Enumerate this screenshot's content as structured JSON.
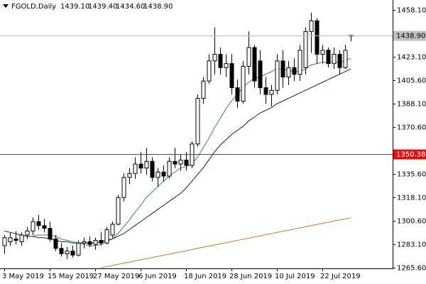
{
  "chart_data": {
    "type": "candlestick",
    "header": {
      "symbol": "FGOLD,Daily",
      "ohlc": [
        "1439.10",
        "1439.40",
        "1434.60",
        "1438.90"
      ]
    },
    "categories": [
      "3 May 2019",
      null,
      null,
      null,
      null,
      null,
      null,
      null,
      "15 May 2019",
      null,
      null,
      null,
      null,
      null,
      null,
      null,
      "27 May 2019",
      null,
      null,
      null,
      null,
      null,
      null,
      null,
      "6 Jun 2019",
      null,
      null,
      null,
      null,
      null,
      null,
      null,
      "18 Jun 2019",
      null,
      null,
      null,
      null,
      null,
      null,
      null,
      "28 Jun 2019",
      null,
      null,
      null,
      null,
      null,
      null,
      null,
      "10 Jul 2019",
      null,
      null,
      null,
      null,
      null,
      null,
      null,
      "22 Jul 2019",
      null,
      null,
      null,
      null,
      null
    ],
    "open": [
      1282,
      1285,
      1287,
      1285,
      1290,
      1293,
      1300,
      1297,
      1295,
      1287,
      1280,
      1276,
      1278,
      1275,
      1284,
      1285,
      1283,
      1286,
      1284,
      1290,
      1298,
      1318,
      1333,
      1336,
      1343,
      1340,
      1345,
      1333,
      1337,
      1334,
      1345,
      1343,
      1346,
      1342,
      1358,
      1392,
      1405,
      1420,
      1425,
      1415,
      1418,
      1400,
      1390,
      1416,
      1430,
      1420,
      1400,
      1395,
      1398,
      1420,
      1408,
      1415,
      1410,
      1415,
      1442,
      1450,
      1425,
      1428,
      1418,
      1425,
      1415,
      1439.1
    ],
    "high": [
      1290,
      1292,
      1293,
      1292,
      1296,
      1303,
      1305,
      1302,
      1300,
      1290,
      1284,
      1281,
      1282,
      1286,
      1288,
      1289,
      1288,
      1292,
      1296,
      1300,
      1320,
      1336,
      1340,
      1348,
      1352,
      1355,
      1348,
      1340,
      1342,
      1348,
      1355,
      1350,
      1352,
      1360,
      1395,
      1408,
      1425,
      1445,
      1430,
      1425,
      1425,
      1406,
      1420,
      1442,
      1432,
      1428,
      1408,
      1402,
      1425,
      1428,
      1420,
      1422,
      1432,
      1445,
      1456,
      1452,
      1432,
      1430,
      1430,
      1428,
      1432,
      1439.4
    ],
    "low": [
      1276,
      1282,
      1283,
      1282,
      1287,
      1290,
      1294,
      1292,
      1285,
      1278,
      1274,
      1272,
      1273,
      1274,
      1280,
      1281,
      1279,
      1282,
      1283,
      1288,
      1297,
      1315,
      1328,
      1332,
      1336,
      1335,
      1330,
      1326,
      1330,
      1332,
      1340,
      1338,
      1338,
      1340,
      1356,
      1388,
      1403,
      1410,
      1410,
      1408,
      1395,
      1385,
      1388,
      1410,
      1400,
      1395,
      1388,
      1386,
      1395,
      1400,
      1402,
      1405,
      1405,
      1410,
      1426,
      1418,
      1418,
      1415,
      1414,
      1410,
      1414,
      1434.6
    ],
    "close": [
      1288,
      1288,
      1286,
      1290,
      1293,
      1300,
      1297,
      1295,
      1287,
      1280,
      1276,
      1278,
      1275,
      1284,
      1285,
      1283,
      1286,
      1284,
      1294,
      1298,
      1318,
      1333,
      1336,
      1343,
      1340,
      1345,
      1333,
      1337,
      1334,
      1345,
      1343,
      1346,
      1342,
      1358,
      1392,
      1405,
      1420,
      1425,
      1415,
      1418,
      1400,
      1390,
      1416,
      1430,
      1405,
      1400,
      1395,
      1398,
      1420,
      1408,
      1415,
      1410,
      1428,
      1442,
      1450,
      1425,
      1428,
      1418,
      1425,
      1415,
      1428,
      1438.9
    ],
    "up_color": "#ffffff",
    "down_color": "#000000",
    "series": [
      {
        "color": "#2e8b57",
        "values": [
          null,
          null,
          null,
          null,
          null,
          1289,
          1290,
          1290,
          1290,
          1289,
          1287,
          1286,
          1285,
          1284,
          1283,
          1282,
          1282,
          1283,
          1285,
          1287,
          1291,
          1296,
          1301,
          1307,
          1312,
          1318,
          1322,
          1326,
          1330,
          1334,
          1337,
          1340,
          1341,
          1343,
          1348,
          1355,
          1362,
          1370,
          1377,
          1384,
          1390,
          1395,
          1400,
          1404,
          1407,
          1408,
          1410,
          1412,
          1414,
          1414,
          1413,
          1412,
          1412,
          1414,
          1417,
          1418,
          1419,
          1419,
          1419,
          1419,
          1420,
          1422
        ]
      },
      {
        "color": "#14146e",
        "values": [
          1293,
          1292,
          1291,
          1290,
          1289,
          1289,
          1288,
          1288,
          1287,
          1286,
          1285,
          1285,
          1284,
          1284,
          1284,
          1284,
          1284,
          1285,
          1286,
          1287,
          1289,
          1291,
          1294,
          1297,
          1300,
          1303,
          1306,
          1309,
          1312,
          1315,
          1318,
          1321,
          1325,
          1330,
          1335,
          1340,
          1346,
          1352,
          1357,
          1361,
          1365,
          1368,
          1371,
          1375,
          1378,
          1381,
          1383,
          1385,
          1388,
          1390,
          1392,
          1394,
          1396,
          1398,
          1400,
          1402,
          1404,
          1406,
          1408,
          1410,
          1412,
          1414
        ]
      },
      {
        "color": "#c8792e",
        "values": [
          null,
          null,
          null,
          null,
          null,
          null,
          null,
          null,
          null,
          null,
          null,
          null,
          null,
          null,
          null,
          null,
          null,
          1265.5,
          1266.4,
          1267.2,
          1268.1,
          1268.9,
          1269.8,
          1270.6,
          1271.5,
          1272.3,
          1273.2,
          1274.0,
          1274.9,
          1275.7,
          1276.6,
          1277.4,
          1278.3,
          1279.1,
          1280.0,
          1280.8,
          1281.7,
          1282.5,
          1283.4,
          1284.2,
          1285.1,
          1285.9,
          1286.8,
          1287.6,
          1288.5,
          1289.3,
          1290.2,
          1291.0,
          1291.9,
          1292.7,
          1293.6,
          1294.4,
          1295.3,
          1296.1,
          1297.0,
          1297.8,
          1298.7,
          1299.5,
          1300.4,
          1301.2,
          1302.1,
          1302.9
        ]
      }
    ],
    "ylim": [
      1265.07,
      1465.52
    ],
    "yticks": [
      {
        "value": 1458.1,
        "label": "1458.10"
      },
      {
        "value": 1423.1,
        "label": "1423.10"
      },
      {
        "value": 1405.6,
        "label": "1405.60"
      },
      {
        "value": 1388.1,
        "label": "1388.10"
      },
      {
        "value": 1370.6,
        "label": "1370.60"
      },
      {
        "value": 1335.6,
        "label": "1335.60"
      },
      {
        "value": 1318.1,
        "label": "1318.10"
      },
      {
        "value": 1300.6,
        "label": "1300.60"
      },
      {
        "value": 1283.1,
        "label": "1283.10"
      },
      {
        "value": 1265.6,
        "label": "1265.60"
      }
    ],
    "price_lines": [
      {
        "value": 1438.9,
        "label": "1438.90",
        "color": "#c0c0c0",
        "text_color": "#000000"
      },
      {
        "value": 1350.38,
        "label": "1350.38",
        "color": "#e01010",
        "text_color": "#ffffff"
      }
    ]
  }
}
